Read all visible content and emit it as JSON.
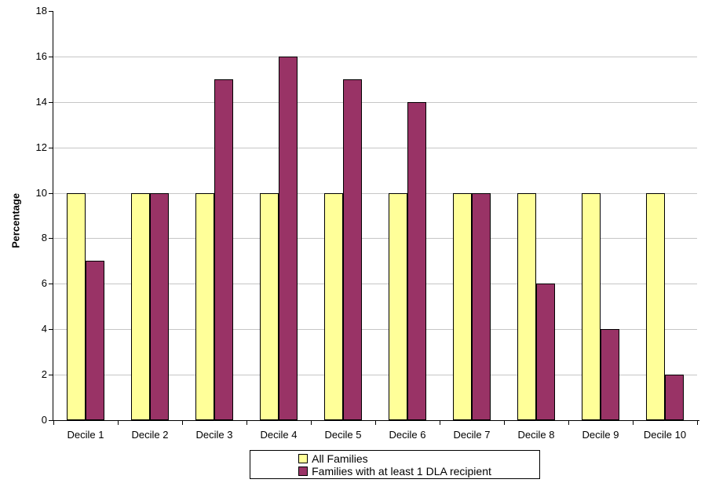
{
  "chart_data": {
    "type": "bar",
    "title": "",
    "categories": [
      "Decile 1",
      "Decile 2",
      "Decile 3",
      "Decile 4",
      "Decile 5",
      "Decile 6",
      "Decile 7",
      "Decile 8",
      "Decile 9",
      "Decile 10"
    ],
    "series": [
      {
        "name": "All Families",
        "color": "#FFFF99",
        "values": [
          10,
          10,
          10,
          10,
          10,
          10,
          10,
          10,
          10,
          10
        ]
      },
      {
        "name": "Families with at least 1 DLA recipient",
        "color": "#993366",
        "values": [
          7,
          10,
          15,
          16,
          15,
          14,
          10,
          6,
          4,
          2
        ]
      }
    ],
    "xlabel": "",
    "ylabel": "Percentage",
    "ylim": [
      0,
      18
    ],
    "yticks": [
      0,
      2,
      4,
      6,
      8,
      10,
      12,
      14,
      16,
      18
    ],
    "grid": true,
    "legend_position": "bottom",
    "colors": {
      "bar_border": "#000000",
      "gridline": "#c6c6c6",
      "axis": "#000000",
      "text": "#000000",
      "background": "#ffffff"
    }
  }
}
